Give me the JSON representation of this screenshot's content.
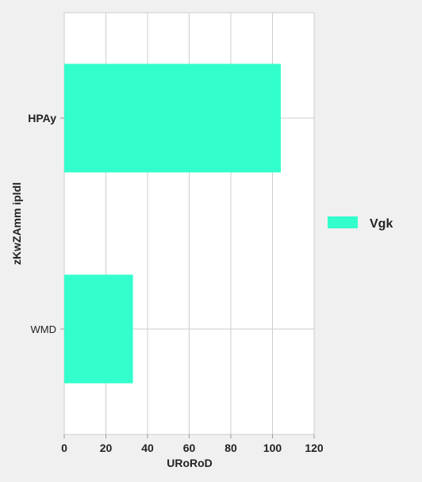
{
  "chart_data": {
    "type": "bar",
    "orientation": "horizontal",
    "categories": [
      "HPAy",
      "WMD"
    ],
    "series": [
      {
        "name": "Vgk",
        "values": [
          104,
          33
        ],
        "color": "#33ffcc"
      }
    ],
    "xlabel": "URoRoD",
    "ylabel": "zKwZAmm ipldl",
    "xlim": [
      0,
      120
    ],
    "x_ticks": [
      0,
      20,
      40,
      60,
      80,
      100,
      120
    ],
    "grid": true,
    "legend_position": "right"
  }
}
